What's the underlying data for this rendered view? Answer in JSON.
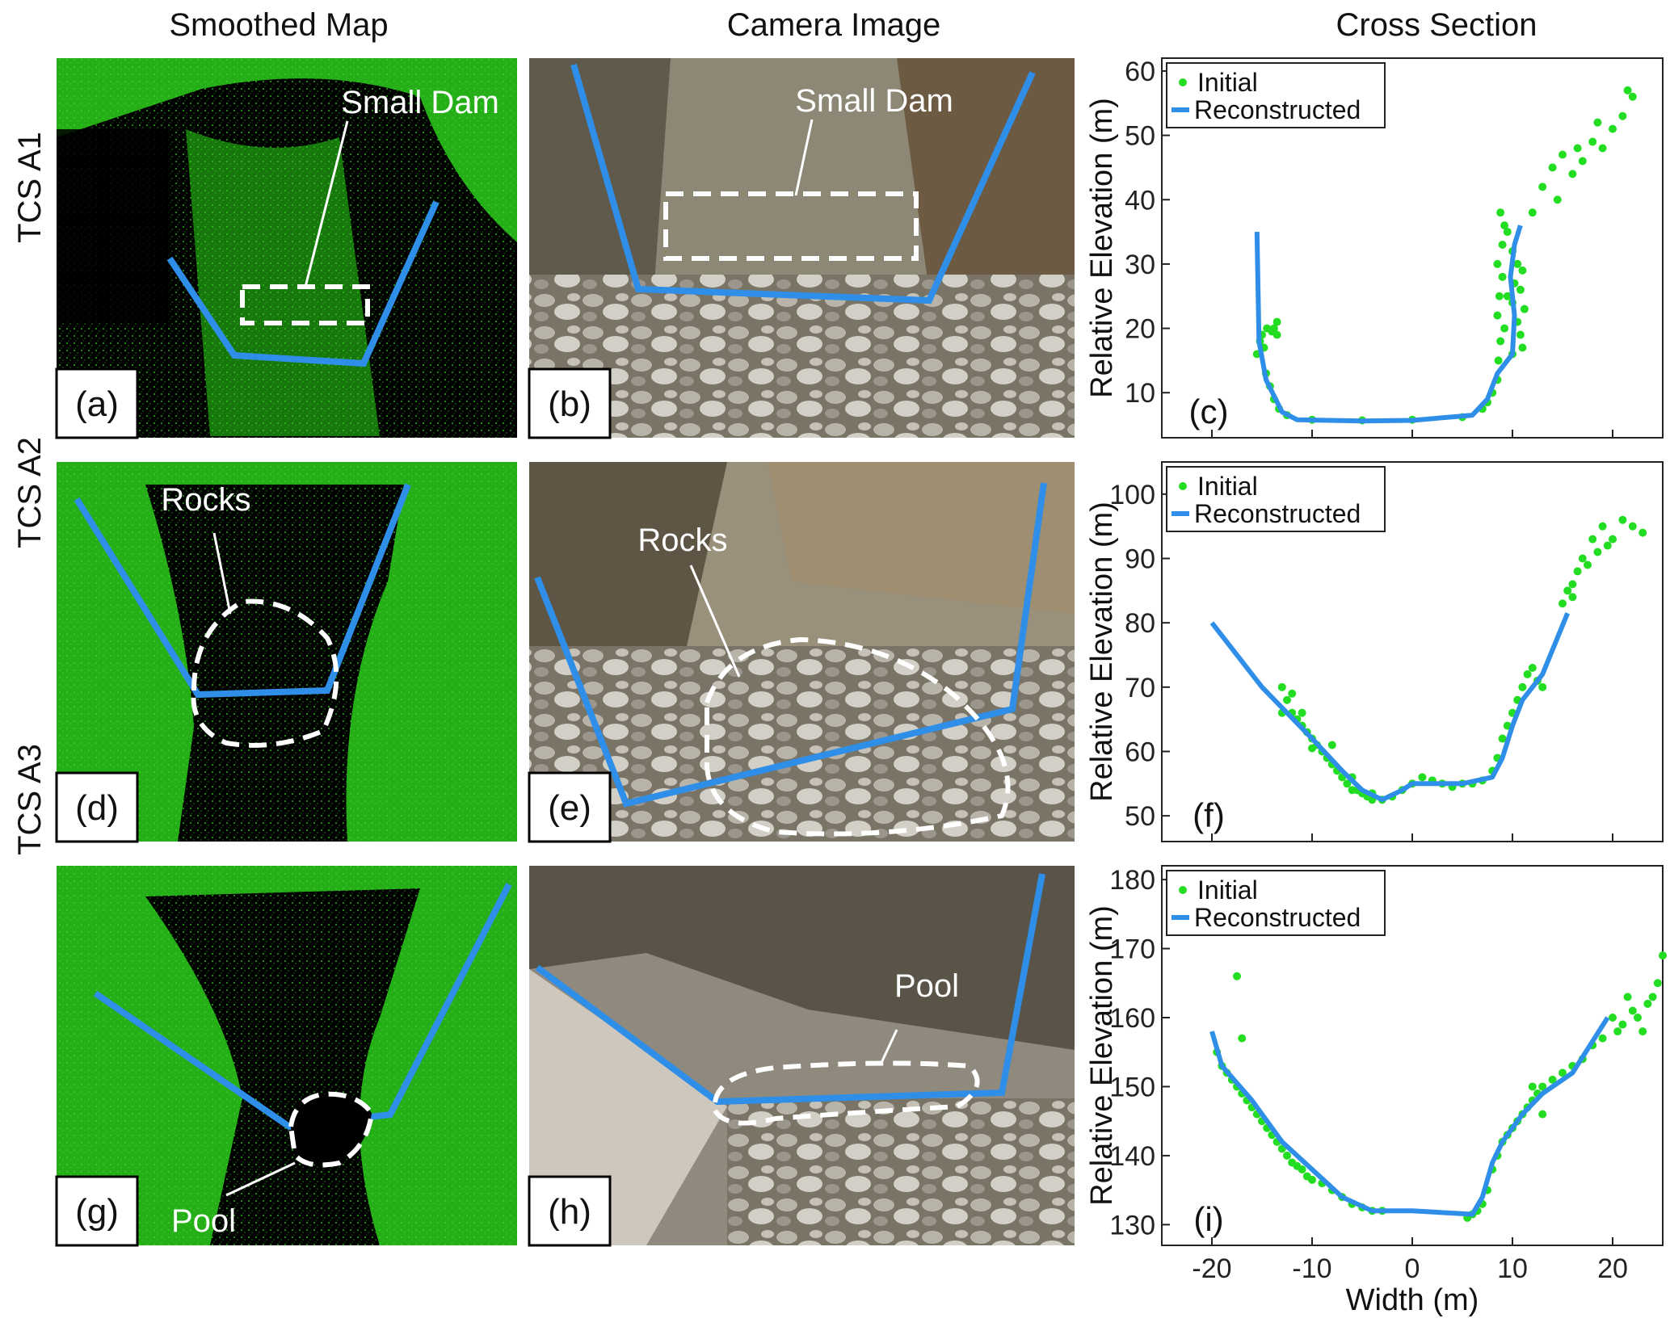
{
  "column_titles": [
    "Smoothed Map",
    "Camera Image",
    "Cross Section"
  ],
  "row_labels": [
    "TCS A1",
    "TCS A2",
    "TCS A3"
  ],
  "panel_labels": [
    "(a)",
    "(b)",
    "(c)",
    "(d)",
    "(e)",
    "(f)",
    "(g)",
    "(h)",
    "(i)"
  ],
  "annotations": {
    "map_a1": "Small Dam",
    "camera_a1": "Small Dam",
    "map_a2": "Rocks",
    "camera_a2": "Rocks",
    "map_a3": "Pool",
    "camera_a3": "Pool"
  },
  "colors": {
    "initial": "#22dd22",
    "reconstructed": "#2f8fe8",
    "map_green": "#33dd22",
    "annotation": "#ffffff"
  },
  "chart_data": [
    {
      "type": "line",
      "panel": "(c)",
      "ylabel": "Relative Elevation (m)",
      "xlabel": "",
      "xlim": [
        -25,
        25
      ],
      "ylim": [
        3,
        62
      ],
      "yticks": [
        10,
        20,
        30,
        40,
        50,
        60
      ],
      "xticks": [
        -20,
        -10,
        0,
        10,
        20
      ],
      "show_xtick_labels": false,
      "legend": "top-left",
      "series": [
        {
          "name": "Initial",
          "style": "scatter",
          "points": [
            [
              -15.5,
              16
            ],
            [
              -15.2,
              18
            ],
            [
              -15,
              19
            ],
            [
              -14.8,
              17
            ],
            [
              -14.5,
              20
            ],
            [
              -14,
              19.5
            ],
            [
              -13.8,
              20
            ],
            [
              -13.5,
              19
            ],
            [
              -13.5,
              21
            ],
            [
              -14.6,
              13
            ],
            [
              -14.2,
              11
            ],
            [
              -13.8,
              9
            ],
            [
              -13.3,
              7.5
            ],
            [
              -12.5,
              6.5
            ],
            [
              -10,
              5.8
            ],
            [
              -5,
              5.7
            ],
            [
              0,
              5.8
            ],
            [
              5,
              6.2
            ],
            [
              7,
              7.5
            ],
            [
              7.5,
              8.5
            ],
            [
              8,
              10
            ],
            [
              8.5,
              12
            ],
            [
              8.6,
              15
            ],
            [
              8.8,
              18
            ],
            [
              8.5,
              22
            ],
            [
              8.7,
              25
            ],
            [
              9,
              28
            ],
            [
              8.5,
              30
            ],
            [
              9,
              33
            ],
            [
              9.2,
              36
            ],
            [
              8.8,
              38
            ],
            [
              9.5,
              35
            ],
            [
              10,
              32
            ],
            [
              10.5,
              30
            ],
            [
              10.2,
              27
            ],
            [
              10,
              24
            ],
            [
              10.5,
              21
            ],
            [
              10.8,
              19
            ],
            [
              11,
              17
            ],
            [
              11.2,
              23
            ],
            [
              10.8,
              26
            ],
            [
              11,
              29
            ],
            [
              9.5,
              25
            ],
            [
              9.2,
              20
            ],
            [
              10,
              16
            ],
            [
              13,
              42
            ],
            [
              14,
              45
            ],
            [
              14.5,
              40
            ],
            [
              15,
              47
            ],
            [
              16,
              44
            ],
            [
              16.5,
              48
            ],
            [
              17,
              46
            ],
            [
              18,
              49
            ],
            [
              18.5,
              52
            ],
            [
              19,
              48
            ],
            [
              20,
              51
            ],
            [
              21,
              53
            ],
            [
              21.5,
              57
            ],
            [
              22,
              56
            ],
            [
              12,
              38
            ]
          ]
        },
        {
          "name": "Reconstructed",
          "style": "line",
          "points": [
            [
              -15.5,
              35
            ],
            [
              -15.3,
              18
            ],
            [
              -14.6,
              12
            ],
            [
              -13,
              7
            ],
            [
              -11.5,
              5.8
            ],
            [
              -5,
              5.6
            ],
            [
              0,
              5.7
            ],
            [
              6,
              6.5
            ],
            [
              7.5,
              9
            ],
            [
              8.5,
              13
            ],
            [
              10,
              16
            ],
            [
              10.2,
              22
            ],
            [
              9.8,
              28
            ],
            [
              10.2,
              33
            ],
            [
              10.8,
              36
            ]
          ]
        }
      ]
    },
    {
      "type": "line",
      "panel": "(f)",
      "ylabel": "Relative Elevation (m)",
      "xlabel": "",
      "xlim": [
        -25,
        25
      ],
      "ylim": [
        46,
        105
      ],
      "yticks": [
        50,
        60,
        70,
        80,
        90,
        100
      ],
      "xticks": [
        -20,
        -10,
        0,
        10,
        20
      ],
      "show_xtick_labels": false,
      "legend": "top-left",
      "series": [
        {
          "name": "Initial",
          "style": "scatter",
          "points": [
            [
              -13,
              70
            ],
            [
              -12.5,
              68
            ],
            [
              -12,
              66
            ],
            [
              -11.5,
              65
            ],
            [
              -11,
              64
            ],
            [
              -10.5,
              63
            ],
            [
              -10,
              62
            ],
            [
              -9.5,
              61
            ],
            [
              -9,
              60
            ],
            [
              -8.5,
              59
            ],
            [
              -8,
              58
            ],
            [
              -7.5,
              57
            ],
            [
              -7,
              56
            ],
            [
              -6.5,
              55
            ],
            [
              -6,
              54
            ],
            [
              -5.5,
              54
            ],
            [
              -5,
              53.5
            ],
            [
              -4.5,
              53
            ],
            [
              -4,
              52.5
            ],
            [
              -3,
              52.5
            ],
            [
              -2,
              53
            ],
            [
              -1,
              54
            ],
            [
              0,
              55
            ],
            [
              1,
              56
            ],
            [
              2,
              55.5
            ],
            [
              3,
              55
            ],
            [
              4,
              54.5
            ],
            [
              5,
              55
            ],
            [
              6,
              55
            ],
            [
              7,
              55.5
            ],
            [
              8,
              57
            ],
            [
              8.5,
              59
            ],
            [
              9,
              62
            ],
            [
              9.5,
              64
            ],
            [
              10,
              66
            ],
            [
              10.5,
              68
            ],
            [
              11,
              70
            ],
            [
              11.5,
              72
            ],
            [
              12,
              73
            ],
            [
              12.5,
              71
            ],
            [
              13,
              70
            ],
            [
              15,
              83
            ],
            [
              16,
              86
            ],
            [
              16.5,
              88
            ],
            [
              17,
              90
            ],
            [
              18,
              93
            ],
            [
              19,
              95
            ],
            [
              20,
              93
            ],
            [
              21,
              96
            ],
            [
              22,
              95
            ],
            [
              23,
              94
            ],
            [
              18.5,
              91
            ],
            [
              17.5,
              89
            ],
            [
              16,
              84
            ],
            [
              15.5,
              85
            ],
            [
              19.5,
              92
            ],
            [
              -12,
              69
            ],
            [
              -13,
              66
            ],
            [
              -11,
              66
            ],
            [
              -10,
              60.5
            ],
            [
              -8,
              61
            ],
            [
              -6,
              56
            ],
            [
              -4,
              53.5
            ]
          ]
        },
        {
          "name": "Reconstructed",
          "style": "line",
          "points": [
            [
              -20,
              80
            ],
            [
              -15,
              70
            ],
            [
              -10,
              62
            ],
            [
              -7,
              57
            ],
            [
              -5,
              54
            ],
            [
              -3,
              52.5
            ],
            [
              -1,
              54
            ],
            [
              0,
              55
            ],
            [
              3,
              55
            ],
            [
              5,
              55
            ],
            [
              8,
              56
            ],
            [
              9,
              59
            ],
            [
              10,
              64
            ],
            [
              11,
              68
            ],
            [
              13,
              72
            ],
            [
              15.5,
              81.5
            ]
          ]
        }
      ]
    },
    {
      "type": "line",
      "panel": "(i)",
      "ylabel": "Relative Elevation (m)",
      "xlabel": "Width (m)",
      "xlim": [
        -25,
        25
      ],
      "ylim": [
        127,
        182
      ],
      "yticks": [
        130,
        140,
        150,
        160,
        170,
        180
      ],
      "xticks": [
        -20,
        -10,
        0,
        10,
        20
      ],
      "show_xtick_labels": true,
      "legend": "top-left",
      "series": [
        {
          "name": "Initial",
          "style": "scatter",
          "points": [
            [
              -17.5,
              166
            ],
            [
              -17,
              157
            ],
            [
              -19.5,
              155
            ],
            [
              -19,
              153
            ],
            [
              -18.5,
              152
            ],
            [
              -18,
              151
            ],
            [
              -17.5,
              150
            ],
            [
              -17,
              149
            ],
            [
              -16.5,
              148
            ],
            [
              -16,
              147
            ],
            [
              -15.5,
              146
            ],
            [
              -15,
              145
            ],
            [
              -14.5,
              144
            ],
            [
              -14,
              143
            ],
            [
              -13.5,
              142
            ],
            [
              -13,
              141
            ],
            [
              -12.5,
              140
            ],
            [
              -12,
              139
            ],
            [
              -11.5,
              138.5
            ],
            [
              -11,
              138
            ],
            [
              -10.5,
              137
            ],
            [
              -10,
              136.5
            ],
            [
              -9,
              136
            ],
            [
              -8,
              135
            ],
            [
              -7,
              134
            ],
            [
              -6,
              133
            ],
            [
              -5,
              132.5
            ],
            [
              -4,
              132
            ],
            [
              -3,
              132
            ],
            [
              5.5,
              131
            ],
            [
              6,
              131.5
            ],
            [
              6.5,
              132
            ],
            [
              7,
              133
            ],
            [
              7.5,
              135
            ],
            [
              8,
              138
            ],
            [
              8.5,
              140
            ],
            [
              9,
              142
            ],
            [
              9.5,
              143
            ],
            [
              10,
              144
            ],
            [
              10.5,
              145
            ],
            [
              11,
              146
            ],
            [
              11.5,
              147
            ],
            [
              12,
              148
            ],
            [
              12.5,
              149
            ],
            [
              13,
              150
            ],
            [
              14,
              151
            ],
            [
              15,
              152
            ],
            [
              16,
              153
            ],
            [
              17,
              154
            ],
            [
              18,
              156
            ],
            [
              19,
              157
            ],
            [
              20,
              160
            ],
            [
              21,
              159
            ],
            [
              22,
              161
            ],
            [
              23,
              158
            ],
            [
              24,
              163
            ],
            [
              24.5,
              165
            ],
            [
              25,
              169
            ],
            [
              23.5,
              162
            ],
            [
              22.5,
              160
            ],
            [
              21.5,
              163
            ],
            [
              20.5,
              158
            ],
            [
              13,
              146
            ],
            [
              12,
              150
            ]
          ]
        },
        {
          "name": "Reconstructed",
          "style": "line",
          "points": [
            [
              -20,
              158
            ],
            [
              -19,
              153
            ],
            [
              -16,
              148
            ],
            [
              -13,
              142
            ],
            [
              -10,
              138
            ],
            [
              -7,
              134
            ],
            [
              -4,
              132
            ],
            [
              0,
              132
            ],
            [
              6,
              131.5
            ],
            [
              7,
              134
            ],
            [
              8,
              139
            ],
            [
              9,
              142
            ],
            [
              11,
              146
            ],
            [
              13,
              149
            ],
            [
              16,
              152
            ],
            [
              19.5,
              160
            ]
          ]
        }
      ]
    }
  ]
}
